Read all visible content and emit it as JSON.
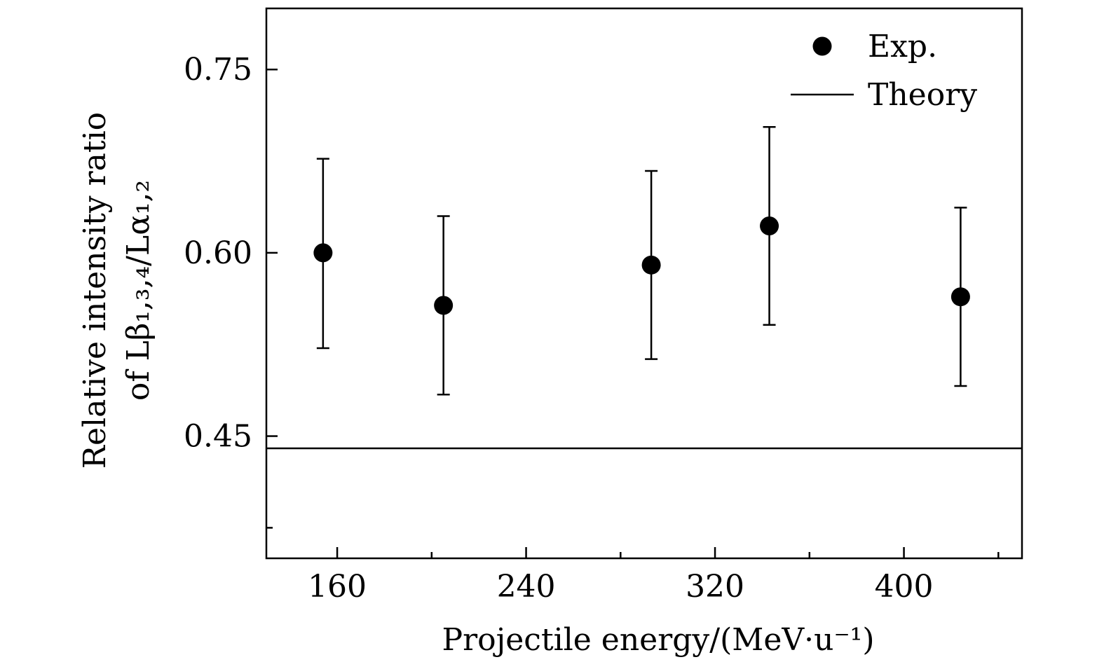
{
  "chart_data": {
    "type": "scatter",
    "xlabel": "Projectile energy/(MeV·u⁻¹)",
    "ylabel_line1": "Relative intensity ratio",
    "ylabel_line2": "of Lβ₁,₃,₄/Lα₁,₂",
    "xlim": [
      130,
      450
    ],
    "ylim": [
      0.35,
      0.8
    ],
    "xticks": [
      160,
      240,
      320,
      400
    ],
    "xticks_minor": [
      200,
      280,
      360,
      440
    ],
    "xtick_labels": [
      "160",
      "240",
      "320",
      "400"
    ],
    "yticks": [
      0.45,
      0.6,
      0.75
    ],
    "yticks_minor": [
      0.375
    ],
    "ytick_labels": [
      "0.45",
      "0.60",
      "0.75"
    ],
    "series": [
      {
        "name": "Exp.",
        "marker": "circle",
        "x": [
          154,
          205,
          293,
          343,
          424
        ],
        "y": [
          0.6,
          0.557,
          0.59,
          0.622,
          0.564
        ],
        "err_lower": [
          0.078,
          0.073,
          0.077,
          0.081,
          0.073
        ],
        "err_upper": [
          0.077,
          0.073,
          0.077,
          0.081,
          0.073
        ]
      },
      {
        "name": "Theory",
        "style": "line",
        "y": 0.44
      }
    ],
    "legend": {
      "position": "top-right",
      "entries": [
        "Exp.",
        "Theory"
      ]
    }
  }
}
